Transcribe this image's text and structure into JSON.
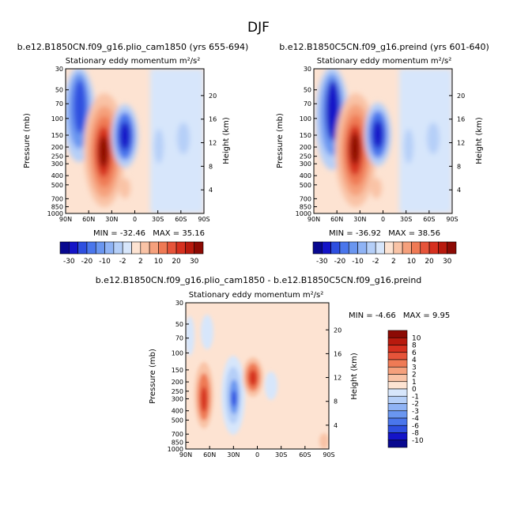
{
  "page_title": "DJF",
  "colors": {
    "neg": [
      "#08088f",
      "#1414c8",
      "#2e4fe0",
      "#4a76ec",
      "#6a96f0",
      "#8fb3f5",
      "#b5cff8",
      "#d7e6fb"
    ],
    "pos": [
      "#fde3d2",
      "#f9c3a6",
      "#f5a07c",
      "#ef7a55",
      "#e6543a",
      "#d6301f",
      "#b81a0e",
      "#8c0a04"
    ]
  },
  "panels": [
    {
      "heading": "b.e12.B1850CN.f09_g16.plio_cam1850 (yrs 655-694)",
      "title": "Stationary eddy momentum",
      "units": "m²/s²",
      "y_left_label": "Pressure (mb)",
      "y_right_label": "Height (km)",
      "stats": {
        "min_label": "MIN =",
        "min": "-32.46",
        "max_label": "MAX =",
        "max": "35.16"
      }
    },
    {
      "heading": "b.e12.B1850C5CN.f09_g16.preind (yrs 601-640)",
      "title": "Stationary eddy momentum",
      "units": "m²/s²",
      "y_left_label": "Pressure (mb)",
      "y_right_label": "Height (km)",
      "stats": {
        "min_label": "MIN =",
        "min": "-36.92",
        "max_label": "MAX =",
        "max": "38.56"
      }
    },
    {
      "heading": "b.e12.B1850CN.f09_g16.plio_cam1850 - b.e12.B1850C5CN.f09_g16.preind",
      "title": "Stationary eddy momentum",
      "units": "m²/s²",
      "y_left_label": "Pressure (mb)",
      "y_right_label": "Height (km)",
      "stats": {
        "min_label": "MIN =",
        "min": "-4.66",
        "max_label": "MAX =",
        "max": "9.95"
      }
    }
  ],
  "colorbar_top": {
    "labels": [
      "-30",
      "-20",
      "-10",
      "-2",
      "2",
      "10",
      "20",
      "30"
    ]
  },
  "colorbar_diff": {
    "labels": [
      "10",
      "8",
      "6",
      "4",
      "3",
      "2",
      "1",
      "0",
      "-1",
      "-2",
      "-3",
      "-4",
      "-6",
      "-8",
      "-10"
    ]
  },
  "chart_data": [
    {
      "type": "heatmap",
      "title": "Stationary eddy momentum",
      "units": "m²/s²",
      "xlabel": "",
      "ylabel": "Pressure (mb)",
      "y2label": "Height (km)",
      "x_ticks": [
        "90N",
        "60N",
        "30N",
        "0",
        "30S",
        "60S",
        "90S"
      ],
      "x_range": [
        90,
        -90
      ],
      "y_ticks": [
        30,
        50,
        70,
        100,
        150,
        200,
        250,
        300,
        400,
        500,
        700,
        850,
        1000
      ],
      "y_range": [
        1000,
        30
      ],
      "y_scale": "log",
      "y2_ticks": [
        4,
        8,
        12,
        16,
        20
      ],
      "min": -32.46,
      "max": 35.16,
      "levels": [
        -30,
        -25,
        -20,
        -15,
        -10,
        -5,
        -2,
        2,
        5,
        10,
        15,
        20,
        25,
        30
      ],
      "features": [
        {
          "lat": 63,
          "p": 90,
          "value": -30
        },
        {
          "lat": 28,
          "p": 230,
          "value": 35
        },
        {
          "lat": 8,
          "p": 150,
          "value": -30
        },
        {
          "lat": 8,
          "p": 650,
          "value": 5
        },
        {
          "lat": -20,
          "p": 180,
          "value": -5
        },
        {
          "lat": -65,
          "p": 120,
          "value": -4
        }
      ]
    },
    {
      "type": "heatmap",
      "title": "Stationary eddy momentum",
      "units": "m²/s²",
      "xlabel": "",
      "ylabel": "Pressure (mb)",
      "y2label": "Height (km)",
      "x_ticks": [
        "90N",
        "60N",
        "30N",
        "0",
        "30S",
        "60S",
        "90S"
      ],
      "x_range": [
        90,
        -90
      ],
      "y_ticks": [
        30,
        50,
        70,
        100,
        150,
        200,
        250,
        300,
        400,
        500,
        700,
        850,
        1000
      ],
      "y_range": [
        1000,
        30
      ],
      "y_scale": "log",
      "y2_ticks": [
        4,
        8,
        12,
        16,
        20
      ],
      "min": -36.92,
      "max": 38.56,
      "levels": [
        -30,
        -25,
        -20,
        -15,
        -10,
        -5,
        -2,
        2,
        5,
        10,
        15,
        20,
        25,
        30
      ],
      "features": [
        {
          "lat": 63,
          "p": 90,
          "value": -35
        },
        {
          "lat": 28,
          "p": 210,
          "value": 38
        },
        {
          "lat": 8,
          "p": 150,
          "value": -36
        },
        {
          "lat": 8,
          "p": 650,
          "value": 5
        },
        {
          "lat": -20,
          "p": 180,
          "value": -5
        },
        {
          "lat": -65,
          "p": 120,
          "value": -4
        }
      ]
    },
    {
      "type": "heatmap",
      "title": "Stationary eddy momentum",
      "units": "m²/s²",
      "xlabel": "",
      "ylabel": "Pressure (mb)",
      "y2label": "Height (km)",
      "x_ticks": [
        "90N",
        "60N",
        "30N",
        "0",
        "30S",
        "60S",
        "90S"
      ],
      "x_range": [
        90,
        -90
      ],
      "y_ticks": [
        30,
        50,
        70,
        100,
        150,
        200,
        250,
        300,
        400,
        500,
        700,
        850,
        1000
      ],
      "y_range": [
        1000,
        30
      ],
      "y_scale": "log",
      "y2_ticks": [
        4,
        8,
        12,
        16,
        20
      ],
      "min": -4.66,
      "max": 9.95,
      "levels": [
        -10,
        -8,
        -6,
        -4,
        -3,
        -2,
        -1,
        0,
        1,
        2,
        3,
        4,
        6,
        8,
        10
      ],
      "features": [
        {
          "lat": 65,
          "p": 280,
          "value": 6
        },
        {
          "lat": 30,
          "p": 280,
          "value": -4.5
        },
        {
          "lat": 6,
          "p": 190,
          "value": 9.5
        },
        {
          "lat": 88,
          "p": 900,
          "value": 1.5
        }
      ]
    }
  ]
}
